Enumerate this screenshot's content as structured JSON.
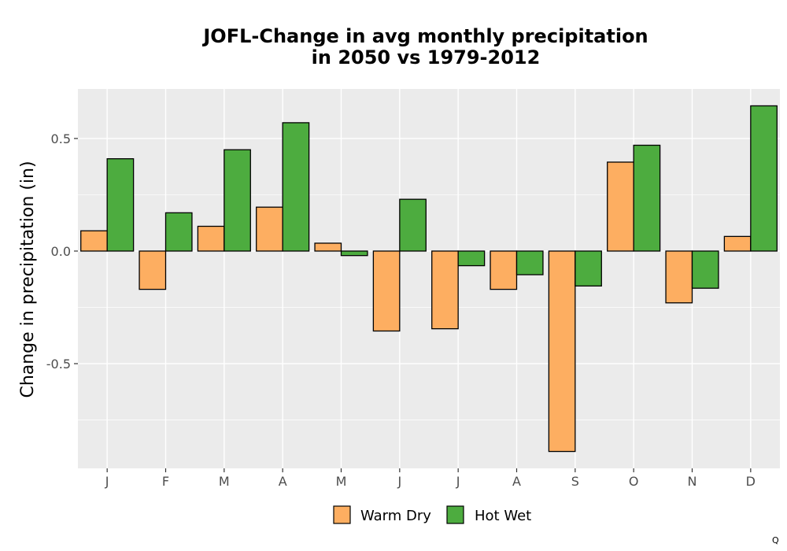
{
  "chart_data": {
    "type": "bar",
    "title_lines": [
      "JOFL-Change in avg monthly precipitation",
      "in 2050 vs 1979-2012"
    ],
    "xlabel": "",
    "ylabel": "Change in precipitation (in)",
    "categories": [
      "J",
      "F",
      "M",
      "A",
      "M",
      "J",
      "J",
      "A",
      "S",
      "O",
      "N",
      "D"
    ],
    "series": [
      {
        "name": "Warm Dry",
        "color": "#FDAE61",
        "values": [
          0.09,
          -0.17,
          0.11,
          0.195,
          0.035,
          -0.355,
          -0.345,
          -0.17,
          -0.89,
          0.395,
          -0.23,
          0.065
        ]
      },
      {
        "name": "Hot Wet",
        "color": "#4DAC3F",
        "values": [
          0.41,
          0.17,
          0.45,
          0.57,
          -0.02,
          0.23,
          -0.065,
          -0.105,
          -0.155,
          0.47,
          -0.165,
          0.645
        ]
      }
    ],
    "ylim": [
      -0.965,
      0.72
    ],
    "yticks": [
      -0.5,
      0.0,
      0.5
    ],
    "ytick_labels": [
      "-0.5",
      "0.0",
      "0.5"
    ],
    "grid": true,
    "panel_background": "#EBEBEB",
    "bar_outline": "#000000",
    "legend_position": "bottom"
  },
  "caption": "Q"
}
